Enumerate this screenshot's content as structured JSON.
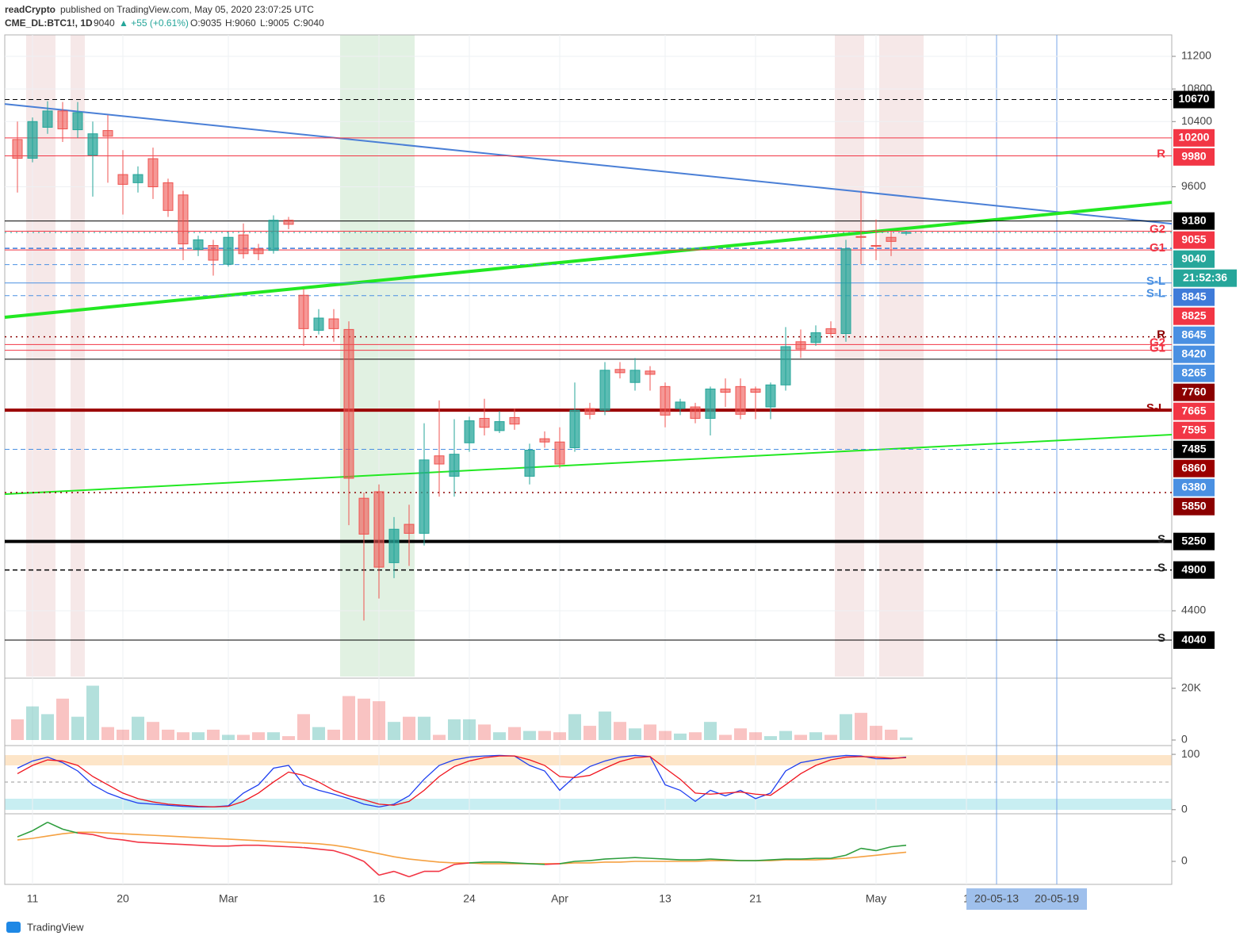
{
  "chart_data": {
    "type": "candlestick",
    "author": "readCrypto",
    "published": "published on TradingView.com, May 05, 2020 23:07:25 UTC",
    "symbol": "CME_DL:BTC1!, 1D",
    "last": 9040,
    "change": "▲ +55 (+0.61%)",
    "ohlc_text": [
      "O:9035",
      "H:9060",
      "L:9005",
      "C:9040"
    ],
    "footer": "TradingView",
    "up_color": "#26a69a",
    "down_color": "#ef5350",
    "ylim": [
      3593,
      11463
    ],
    "yticks": [
      4400,
      9600,
      10400,
      10800,
      11200
    ],
    "categories": [
      null,
      "11",
      null,
      null,
      null,
      null,
      null,
      "20",
      null,
      null,
      null,
      null,
      null,
      null,
      "Mar",
      null,
      null,
      null,
      null,
      null,
      null,
      null,
      null,
      null,
      "16",
      null,
      null,
      null,
      null,
      null,
      "24",
      null,
      null,
      null,
      null,
      null,
      "Apr",
      null,
      null,
      null,
      null,
      null,
      null,
      "13",
      null,
      null,
      null,
      null,
      null,
      "21",
      null,
      null,
      null,
      null,
      null,
      null,
      null,
      "May",
      null,
      null,
      null,
      null,
      null,
      "1",
      null,
      "20-05-13",
      null,
      null,
      null,
      "20-05-19"
    ],
    "open": [
      10180,
      9950,
      10330,
      10530,
      10300,
      9990,
      10290,
      9750,
      9650,
      9945,
      9650,
      9500,
      8830,
      8880,
      8650,
      9010,
      8840,
      8820,
      9190,
      8270,
      7840,
      7980,
      7850,
      5780,
      5860,
      4990,
      5460,
      5350,
      6300,
      6050,
      6460,
      6760,
      6610,
      6770,
      6050,
      6510,
      6470,
      6400,
      6880,
      6860,
      7360,
      7200,
      7340,
      7150,
      6880,
      6900,
      6760,
      7120,
      7150,
      7120,
      6900,
      7170,
      7700,
      7690,
      7860,
      7800,
      8990,
      8880,
      8980,
      9035,
      null,
      null,
      null,
      null,
      null,
      null,
      null,
      null,
      null,
      null
    ],
    "high": [
      10400,
      10450,
      10650,
      10640,
      10640,
      10400,
      10480,
      10050,
      9850,
      10080,
      9700,
      9550,
      9000,
      8950,
      9050,
      9150,
      8900,
      9250,
      9230,
      8350,
      8100,
      8100,
      7950,
      5850,
      5950,
      5550,
      5700,
      6700,
      6980,
      6750,
      6780,
      7000,
      6850,
      6880,
      6450,
      6600,
      6650,
      7200,
      6950,
      7450,
      7450,
      7500,
      7400,
      7200,
      7000,
      6950,
      7150,
      7250,
      7250,
      7150,
      7200,
      7880,
      7850,
      7900,
      7950,
      8950,
      9550,
      9200,
      9050,
      9060,
      null,
      null,
      null,
      null,
      null,
      null,
      null,
      null,
      null,
      null
    ],
    "low": [
      9530,
      9900,
      10250,
      10150,
      10200,
      9480,
      9650,
      9260,
      9530,
      9450,
      9230,
      8700,
      8750,
      8510,
      8620,
      8720,
      8700,
      8780,
      9080,
      7650,
      7790,
      7700,
      5450,
      4280,
      4550,
      4800,
      4950,
      5200,
      5800,
      5800,
      6350,
      6550,
      6580,
      6620,
      5950,
      6400,
      6150,
      6350,
      6750,
      6800,
      7250,
      7100,
      7100,
      6650,
      6800,
      6700,
      6550,
      6900,
      6750,
      6750,
      6750,
      7100,
      7500,
      7650,
      7750,
      7700,
      8650,
      8700,
      8750,
      9005,
      null,
      null,
      null,
      null,
      null,
      null,
      null,
      null,
      null,
      null
    ],
    "close": [
      9950,
      10400,
      10530,
      10310,
      10510,
      10250,
      10220,
      9630,
      9750,
      9600,
      9310,
      8900,
      8950,
      8700,
      8980,
      8780,
      8780,
      9190,
      9140,
      7860,
      7990,
      7860,
      6025,
      5340,
      4935,
      5400,
      5350,
      6250,
      6200,
      6320,
      6730,
      6650,
      6720,
      6690,
      6370,
      6470,
      6200,
      6860,
      6810,
      7350,
      7320,
      7350,
      7300,
      6800,
      6960,
      6760,
      7120,
      7080,
      6810,
      7080,
      7170,
      7640,
      7610,
      7810,
      7800,
      8840,
      8980,
      8870,
      8930,
      9040,
      null,
      null,
      null,
      null,
      null,
      null,
      null,
      null,
      null,
      null
    ],
    "levels": [
      {
        "value": 10670,
        "color": "#000000",
        "style": "dashed",
        "width": 1
      },
      {
        "value": 10200,
        "color": "#f23645",
        "style": "solid",
        "width": 1
      },
      {
        "value": 9980,
        "color": "#f23645",
        "style": "solid",
        "width": 1,
        "label": "R"
      },
      {
        "value": 9180,
        "color": "#000000",
        "style": "solid",
        "width": 1
      },
      {
        "value": 9055,
        "color": "#f23645",
        "style": "solid",
        "width": 1,
        "label": "G2"
      },
      {
        "value": 9040,
        "color": "#26a69a",
        "style": "dotted",
        "width": 1
      },
      {
        "value": 8845,
        "color": "#3f7bd9",
        "style": "dashed",
        "width": 1.5
      },
      {
        "value": 8825,
        "color": "#f23645",
        "style": "solid",
        "width": 1,
        "label": "G1"
      },
      {
        "value": 8645,
        "color": "#4a90e2",
        "style": "dashed",
        "width": 1
      },
      {
        "value": 8420,
        "color": "#4a90e2",
        "style": "solid",
        "width": 1,
        "label": "S-L"
      },
      {
        "value": 8265,
        "color": "#4a90e2",
        "style": "dashed",
        "width": 1,
        "label": "S-L"
      },
      {
        "value": 7760,
        "color": "#8b0000",
        "style": "dotted",
        "width": 1.5,
        "label": "R"
      },
      {
        "value": 7665,
        "color": "#f23645",
        "style": "solid",
        "width": 1,
        "label": "G2"
      },
      {
        "value": 7595,
        "color": "#f23645",
        "style": "solid",
        "width": 1,
        "label": "G1"
      },
      {
        "value": 7485,
        "color": "#000000",
        "style": "solid",
        "width": 1
      },
      {
        "value": 6860,
        "color": "#9b0000",
        "style": "solid",
        "width": 4,
        "label": "S-L"
      },
      {
        "value": 6380,
        "color": "#4a90e2",
        "style": "dashed",
        "width": 1
      },
      {
        "value": 5850,
        "color": "#8b0000",
        "style": "dotted",
        "width": 1.5
      },
      {
        "value": 5250,
        "color": "#000000",
        "style": "solid",
        "width": 4,
        "label": "S"
      },
      {
        "value": 4900,
        "color": "#000000",
        "style": "dashed",
        "width": 1.5,
        "label": "S"
      },
      {
        "value": 4040,
        "color": "#000000",
        "style": "solid",
        "width": 1,
        "label": "S"
      }
    ],
    "countdown": "21:52:36",
    "trend_lines": [
      {
        "color": "#4a7fd6",
        "width": 2,
        "start": 10616,
        "end": 9147
      },
      {
        "color": "#22e822",
        "width": 4,
        "start": 8000,
        "end": 9410
      },
      {
        "color": "#22e822",
        "width": 2,
        "start": 5830,
        "end": 6560
      }
    ],
    "volume": {
      "ylim": [
        0,
        23000
      ],
      "yticks": [
        {
          "value": 20000,
          "label": "20K"
        },
        0
      ],
      "values": [
        8000,
        13000,
        10000,
        16000,
        9000,
        21000,
        5000,
        4000,
        9000,
        7000,
        4000,
        3000,
        3000,
        4000,
        2000,
        2000,
        3000,
        3000,
        1500,
        10000,
        5000,
        4000,
        17000,
        16000,
        15000,
        7000,
        9000,
        9000,
        2000,
        8000,
        8000,
        6000,
        3000,
        5000,
        3500,
        3500,
        3000,
        10000,
        5500,
        11000,
        7000,
        4500,
        6000,
        3500,
        2500,
        3000,
        7000,
        2000,
        4500,
        3000,
        1500,
        3500,
        2000,
        3000,
        2000,
        10000,
        10500,
        5500,
        4000,
        1000,
        null,
        null,
        null,
        null,
        null,
        null,
        null,
        null,
        null,
        null
      ]
    },
    "stoch": {
      "ylim": [
        -6,
        113
      ],
      "yticks": [
        100,
        0
      ],
      "series": [
        {
          "color": "#1e3ff0",
          "values": [
            75,
            88,
            95,
            85,
            70,
            45,
            30,
            20,
            12,
            10,
            8,
            6,
            5,
            5,
            7,
            30,
            45,
            75,
            80,
            45,
            35,
            28,
            20,
            10,
            5,
            10,
            25,
            55,
            80,
            90,
            95,
            97,
            98,
            97,
            80,
            70,
            35,
            60,
            78,
            88,
            95,
            98,
            96,
            45,
            35,
            15,
            35,
            25,
            35,
            20,
            30,
            70,
            85,
            90,
            95,
            98,
            97,
            92,
            92,
            95,
            null,
            null,
            null,
            null,
            null,
            null,
            null,
            null,
            null,
            null
          ]
        },
        {
          "color": "#f0141e",
          "values": [
            65,
            80,
            90,
            88,
            80,
            60,
            45,
            30,
            20,
            14,
            10,
            8,
            6,
            5,
            6,
            15,
            30,
            50,
            68,
            62,
            50,
            35,
            25,
            18,
            10,
            8,
            15,
            35,
            60,
            78,
            88,
            94,
            97,
            97,
            90,
            80,
            60,
            58,
            62,
            75,
            87,
            94,
            96,
            75,
            55,
            30,
            28,
            30,
            32,
            28,
            26,
            45,
            65,
            80,
            90,
            95,
            96,
            95,
            93,
            94,
            null,
            null,
            null,
            null,
            null,
            null,
            null,
            null,
            null,
            null
          ]
        }
      ]
    },
    "oscillator": {
      "ylim": [
        -30,
        60
      ],
      "yticks": [
        0
      ],
      "up_color": "#2e9e3e",
      "down_color": "#f23645",
      "fast": [
        32,
        40,
        51,
        42,
        37,
        35,
        30,
        28,
        25,
        24,
        23,
        22,
        21,
        20,
        20,
        21,
        21,
        20,
        19,
        18,
        16,
        14,
        8,
        0,
        -18,
        -13,
        -20,
        -13,
        -13,
        -4,
        -2,
        -1,
        -1,
        -2,
        -3,
        -4,
        -3,
        0,
        1,
        3,
        4,
        5,
        4,
        3,
        2,
        2,
        3,
        2,
        1,
        1,
        2,
        3,
        3,
        4,
        4,
        8,
        17,
        14,
        19,
        21,
        null,
        null,
        null,
        null,
        null,
        null,
        null,
        null,
        null,
        null
      ],
      "slow_color": "#f5a142",
      "slow": [
        28,
        30,
        33,
        36,
        38,
        38,
        37,
        36,
        35,
        34,
        33,
        32,
        31,
        30,
        29,
        28,
        27,
        26,
        25,
        24,
        23,
        21,
        18,
        14,
        10,
        6,
        3,
        1,
        -1,
        -2,
        -2,
        -3,
        -3,
        -3,
        -3,
        -3,
        -3,
        -2,
        -2,
        -1,
        -1,
        0,
        0,
        0,
        0,
        0,
        1,
        1,
        1,
        1,
        1,
        2,
        2,
        2,
        3,
        4,
        6,
        8,
        10,
        12,
        null,
        null,
        null,
        null,
        null,
        null,
        null,
        null,
        null,
        null
      ]
    }
  }
}
